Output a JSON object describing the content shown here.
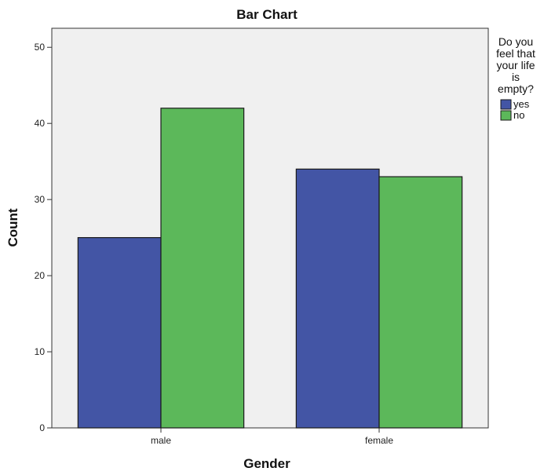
{
  "chart_data": {
    "type": "bar",
    "title": "Bar Chart",
    "xlabel": "Gender",
    "ylabel": "Count",
    "categories": [
      "male",
      "female"
    ],
    "series": [
      {
        "name": "yes",
        "color": "#4355a5",
        "values": [
          25,
          34
        ]
      },
      {
        "name": "no",
        "color": "#5cb85a",
        "values": [
          42,
          33
        ]
      }
    ],
    "ylim": [
      0,
      52.5
    ],
    "yticks": [
      0,
      10,
      20,
      30,
      40,
      50
    ],
    "legend": {
      "title_lines": [
        "Do you",
        "feel that",
        "your life",
        "is",
        "empty?"
      ],
      "position": "right"
    },
    "plot_background": "#f0f0f0",
    "grid": false
  }
}
